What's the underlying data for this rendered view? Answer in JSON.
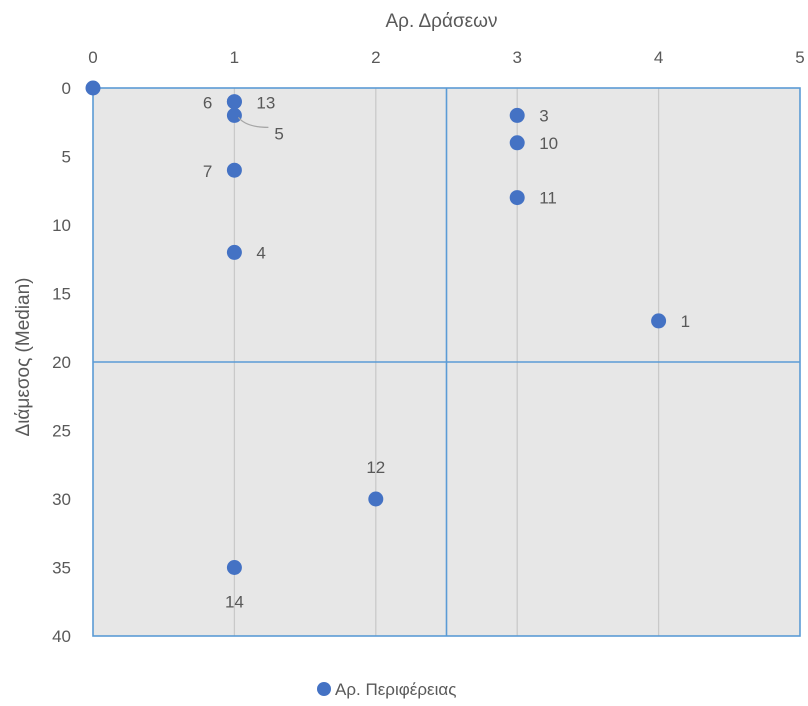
{
  "chart_data": {
    "type": "scatter",
    "xlabel": "Αρ. Δράσεων",
    "ylabel": "Διάμεσος (Median)",
    "xlim": [
      0,
      5
    ],
    "ylim": [
      0,
      40
    ],
    "y_inverted": true,
    "x_axis_position": "top",
    "x_ticks": [
      0,
      1,
      2,
      3,
      4,
      5
    ],
    "y_ticks": [
      0,
      5,
      10,
      15,
      20,
      25,
      30,
      35,
      40
    ],
    "grid": true,
    "quadrant_lines": {
      "x": 2.5,
      "y": 20
    },
    "legend_position": "bottom",
    "colors": {
      "plot_background": "#e7e7e7",
      "gridline": "#c9c9c9",
      "quadrant_line": "#5b9bd5",
      "point": "#4472c4",
      "text": "#595959"
    },
    "series": [
      {
        "name": "Αρ. Περιφέρειας",
        "points": [
          {
            "x": 0,
            "y": 0,
            "label": ""
          },
          {
            "x": 4,
            "y": 17,
            "label": "1"
          },
          {
            "x": 3,
            "y": 2,
            "label": "3"
          },
          {
            "x": 1,
            "y": 12,
            "label": "4"
          },
          {
            "x": 1,
            "y": 2,
            "label": "5"
          },
          {
            "x": 1,
            "y": 1,
            "label": "6"
          },
          {
            "x": 1,
            "y": 6,
            "label": "7"
          },
          {
            "x": 3,
            "y": 4,
            "label": "10"
          },
          {
            "x": 3,
            "y": 8,
            "label": "11"
          },
          {
            "x": 2,
            "y": 30,
            "label": "12"
          },
          {
            "x": 1,
            "y": 1,
            "label": "13"
          },
          {
            "x": 1,
            "y": 35,
            "label": "14"
          }
        ]
      }
    ]
  }
}
